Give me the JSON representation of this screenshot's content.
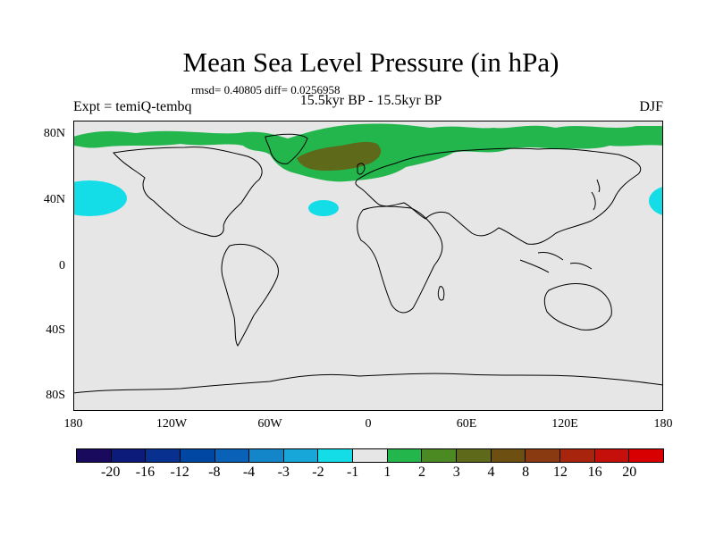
{
  "title": "Mean Sea Level Pressure (in hPa)",
  "stats": "rmsd= 0.40805 diff= 0.0256958",
  "subtitle": "15.5kyr BP - 15.5kyr BP",
  "expt": "Expt = temiQ-tembq",
  "season": "DJF",
  "lat_labels": [
    "80N",
    "40N",
    "0",
    "40S",
    "80S"
  ],
  "lon_labels": [
    "180",
    "120W",
    "60W",
    "0",
    "60E",
    "120E",
    "180"
  ],
  "colorbar": {
    "labels": [
      "-20",
      "-16",
      "-12",
      "-8",
      "-4",
      "-3",
      "-2",
      "-1",
      "1",
      "2",
      "3",
      "4",
      "8",
      "12",
      "16",
      "20"
    ],
    "colors": [
      "#1a0a5e",
      "#0c1a7a",
      "#08318f",
      "#0047a3",
      "#0a62b8",
      "#1286c9",
      "#18a7d9",
      "#14dde8",
      "#e6e6e6",
      "#23b64d",
      "#4b8a23",
      "#5e6a1a",
      "#6e4f12",
      "#8a3a10",
      "#a8240d",
      "#c40f0a",
      "#d80000"
    ]
  },
  "colors": {
    "background": "#e6e6e6",
    "positive_anomaly": "#23b64d",
    "strong_positive_anomaly": "#5e6a1a",
    "negative_anomaly": "#14dde8",
    "coastline": "#000000"
  }
}
